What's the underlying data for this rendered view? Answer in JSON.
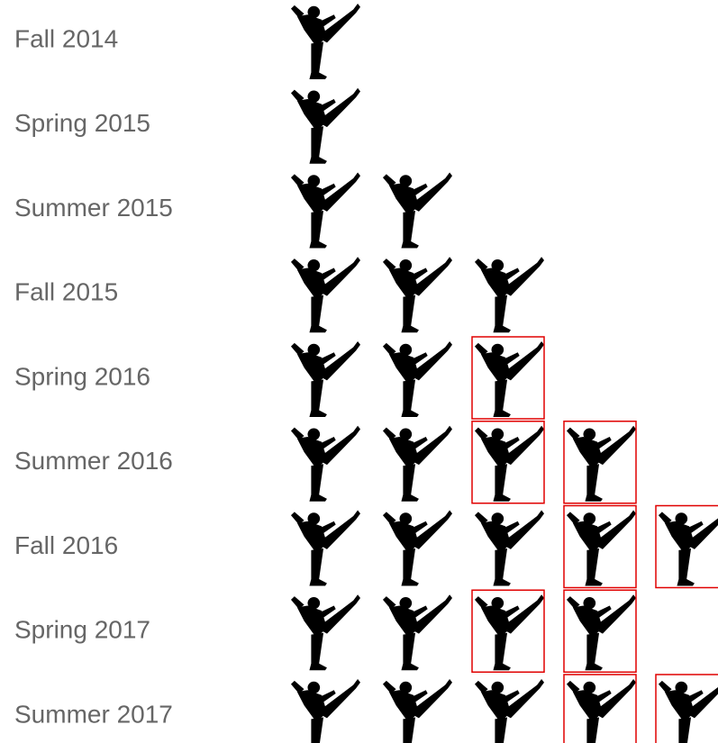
{
  "chart_data": {
    "type": "pictograph",
    "categories": [
      "Fall 2014",
      "Spring 2015",
      "Summer 2015",
      "Fall 2015",
      "Spring 2016",
      "Summer 2016",
      "Fall 2016",
      "Spring 2017",
      "Summer 2017"
    ],
    "values": [
      1,
      1,
      2,
      3,
      3,
      4,
      5,
      4,
      5
    ],
    "color": "#000000",
    "highlight_color": "#e00000",
    "highlight": [
      [],
      [],
      [],
      [],
      [
        3
      ],
      [
        3,
        4
      ],
      [
        4,
        5
      ],
      [
        3,
        4
      ],
      [
        4,
        5
      ]
    ]
  }
}
